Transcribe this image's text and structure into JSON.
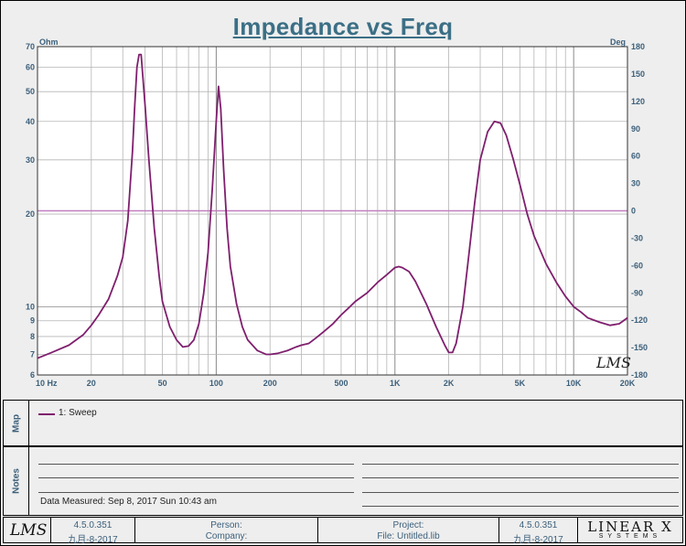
{
  "title": "Impedance vs Freq",
  "chart_data": {
    "type": "line",
    "title": "Impedance vs Freq",
    "x_scale": "log",
    "xlim": [
      10,
      20000
    ],
    "x_tick_labels": [
      {
        "value": 10,
        "label": "10  Hz"
      },
      {
        "value": 20,
        "label": "20"
      },
      {
        "value": 50,
        "label": "50"
      },
      {
        "value": 100,
        "label": "100"
      },
      {
        "value": 200,
        "label": "200"
      },
      {
        "value": 500,
        "label": "500"
      },
      {
        "value": 1000,
        "label": "1K"
      },
      {
        "value": 2000,
        "label": "2K"
      },
      {
        "value": 5000,
        "label": "5K"
      },
      {
        "value": 10000,
        "label": "10K"
      },
      {
        "value": 20000,
        "label": "20K"
      }
    ],
    "y_scale": "log",
    "ylabel": "Ohm",
    "ylim": [
      6,
      70
    ],
    "y_ticks": [
      6,
      7,
      8,
      9,
      10,
      20,
      30,
      40,
      50,
      60,
      70
    ],
    "y2label": "Deg",
    "y2lim": [
      -180,
      180
    ],
    "y2_ticks": [
      -180,
      -150,
      -120,
      -90,
      -60,
      -30,
      0,
      30,
      60,
      90,
      120,
      150,
      180
    ],
    "grid": true,
    "series": [
      {
        "name": "1: Sweep",
        "color": "#7f1f6e",
        "x": [
          10,
          12,
          15,
          18,
          20,
          22,
          25,
          28,
          30,
          32,
          34,
          35,
          36,
          37,
          38,
          40,
          42,
          45,
          48,
          50,
          55,
          60,
          65,
          70,
          75,
          80,
          85,
          90,
          95,
          100,
          103,
          106,
          110,
          115,
          120,
          130,
          140,
          150,
          170,
          190,
          200,
          220,
          250,
          280,
          300,
          330,
          360,
          400,
          450,
          500,
          550,
          600,
          700,
          800,
          900,
          1000,
          1050,
          1100,
          1200,
          1300,
          1500,
          1700,
          1900,
          2000,
          2100,
          2200,
          2400,
          2600,
          2800,
          3000,
          3300,
          3600,
          3900,
          4200,
          4600,
          5000,
          5500,
          6000,
          7000,
          8000,
          9000,
          10000,
          11000,
          12000,
          14000,
          16000,
          18000,
          20000
        ],
        "y": [
          6.8,
          7.1,
          7.5,
          8.1,
          8.7,
          9.4,
          10.6,
          12.6,
          14.5,
          19,
          32,
          45,
          60,
          66,
          66,
          45,
          30,
          18,
          12.5,
          10.4,
          8.6,
          7.8,
          7.4,
          7.45,
          7.8,
          8.8,
          11,
          15,
          24,
          40,
          52,
          44,
          28,
          18,
          13.5,
          10.2,
          8.6,
          7.8,
          7.2,
          7.0,
          7.0,
          7.05,
          7.2,
          7.4,
          7.5,
          7.6,
          7.9,
          8.3,
          8.8,
          9.4,
          9.9,
          10.4,
          11.1,
          12.0,
          12.7,
          13.4,
          13.5,
          13.4,
          13.0,
          12.1,
          10.2,
          8.6,
          7.5,
          7.1,
          7.1,
          7.6,
          10,
          15,
          22,
          30,
          37,
          40,
          39.5,
          36,
          30,
          25,
          20,
          17,
          13.8,
          12,
          10.8,
          10.0,
          9.6,
          9.2,
          8.9,
          8.7,
          8.8,
          9.2
        ]
      }
    ],
    "reference_line": {
      "axis": "y2",
      "value": 0,
      "color": "#c27fc0"
    }
  },
  "map_panel": {
    "label": "Map",
    "legend": [
      {
        "name": "1: Sweep",
        "color": "#7f1f6e"
      }
    ]
  },
  "notes_panel": {
    "label": "Notes",
    "date_measured": "Data Measured: Sep 8, 2017 Sun 10:43 am"
  },
  "footer": {
    "logo_left": "LMS",
    "version_left": "4.5.0.351",
    "date_left": "九月-8-2017",
    "person_label": "Person:",
    "company_label": "Company:",
    "project_label": "Project:",
    "file_label": "File: Untitled.lib",
    "version_right": "4.5.0.351",
    "date_right": "九月-8-2017",
    "brand": "LINEAR X",
    "brand_sub": "SYSTEMS"
  },
  "watermark": "LMS"
}
